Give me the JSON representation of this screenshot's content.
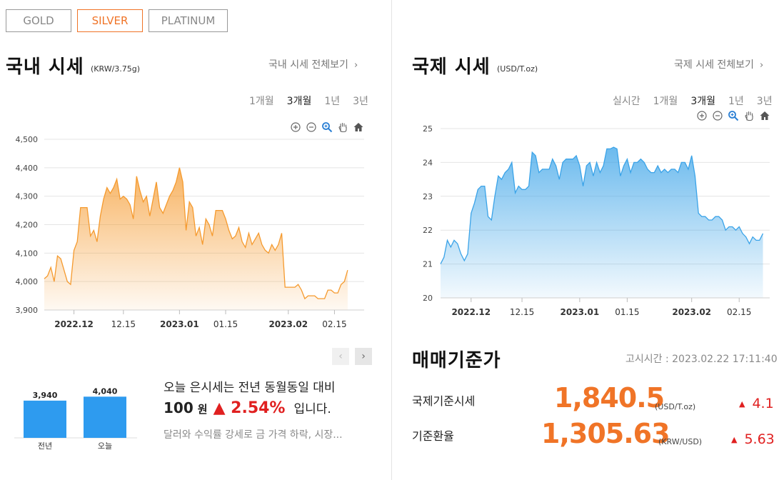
{
  "metal_tabs": [
    {
      "label": "GOLD",
      "active": false
    },
    {
      "label": "SILVER",
      "active": true
    },
    {
      "label": "PLATINUM",
      "active": false
    }
  ],
  "domestic": {
    "title": "국내 시세",
    "unit": "(KRW/3.75g)",
    "more_link": "국내 시세 전체보기",
    "periods": [
      "1개월",
      "3개월",
      "1년",
      "3년"
    ],
    "active_period": "3개월"
  },
  "international": {
    "title": "국제 시세",
    "unit": "(USD/T.oz)",
    "more_link": "국제 시세 전체보기",
    "periods": [
      "실시간",
      "1개월",
      "3개월",
      "1년",
      "3년"
    ],
    "active_period": "3개월"
  },
  "icons": {
    "zoom_in": "zoom-in-icon",
    "zoom_out": "zoom-out-icon",
    "magnify": "magnify-icon",
    "pan": "hand-icon",
    "reset": "home-icon",
    "prev": "chevron-left-icon",
    "next": "chevron-right-icon",
    "more": "chevron-right-icon"
  },
  "summary": {
    "line1": "오늘 은시세는 전년 동월동일 대비",
    "amount": "100",
    "amount_unit": "원",
    "arrow": "▲",
    "percent": "2.54%",
    "tail": "입니다.",
    "news": "달러와 수익률 강세로 금 가격 하락, 시장..."
  },
  "reference": {
    "title": "매매기준가",
    "notice_time": "고시시간 : 2023.02.22 17:11:40",
    "items": [
      {
        "label": "국제기준시세",
        "value": "1,840.5",
        "unit": "(USD/T.oz)",
        "arrow": "▲",
        "change": "4.1"
      },
      {
        "label": "기준환율",
        "value": "1,305.63",
        "unit": "(KRW/USD)",
        "arrow": "▲",
        "change": "5.63"
      }
    ]
  },
  "colors": {
    "accent": "#f07427",
    "domestic_line": "#f59a2e",
    "international_line": "#3aa3e8",
    "bar": "#2e9bef",
    "up": "#e02020"
  },
  "chart_data": [
    {
      "id": "domestic",
      "type": "area",
      "ylim": [
        3900,
        4500
      ],
      "yticks": [
        3900,
        4000,
        4100,
        4200,
        4300,
        4400,
        4500
      ],
      "ytick_labels": [
        "3,900",
        "4,000",
        "4,100",
        "4,200",
        "4,300",
        "4,400",
        "4,500"
      ],
      "x_range": [
        0,
        97
      ],
      "xticks": [
        {
          "x": 9,
          "label": "2022.12",
          "bold": true
        },
        {
          "x": 24,
          "label": "12.15",
          "bold": false
        },
        {
          "x": 41,
          "label": "2023.01",
          "bold": true
        },
        {
          "x": 55,
          "label": "01.15",
          "bold": false
        },
        {
          "x": 74,
          "label": "2023.02",
          "bold": true
        },
        {
          "x": 88,
          "label": "02.15",
          "bold": false
        }
      ],
      "series": [
        {
          "values": [
            [
              0,
              4010
            ],
            [
              1,
              4020
            ],
            [
              2,
              4050
            ],
            [
              3,
              4000
            ],
            [
              4,
              4090
            ],
            [
              5,
              4080
            ],
            [
              6,
              4040
            ],
            [
              7,
              4000
            ],
            [
              8,
              3990
            ],
            [
              9,
              4110
            ],
            [
              10,
              4140
            ],
            [
              11,
              4260
            ],
            [
              12,
              4260
            ],
            [
              13,
              4260
            ],
            [
              14,
              4160
            ],
            [
              15,
              4180
            ],
            [
              16,
              4140
            ],
            [
              17,
              4230
            ],
            [
              18,
              4290
            ],
            [
              19,
              4330
            ],
            [
              20,
              4310
            ],
            [
              21,
              4330
            ],
            [
              22,
              4360
            ],
            [
              23,
              4290
            ],
            [
              24,
              4300
            ],
            [
              25,
              4290
            ],
            [
              26,
              4270
            ],
            [
              27,
              4220
            ],
            [
              28,
              4370
            ],
            [
              29,
              4320
            ],
            [
              30,
              4280
            ],
            [
              31,
              4300
            ],
            [
              32,
              4230
            ],
            [
              33,
              4290
            ],
            [
              34,
              4350
            ],
            [
              35,
              4260
            ],
            [
              36,
              4240
            ],
            [
              37,
              4270
            ],
            [
              38,
              4300
            ],
            [
              39,
              4320
            ],
            [
              40,
              4350
            ],
            [
              41,
              4400
            ],
            [
              42,
              4350
            ],
            [
              43,
              4180
            ],
            [
              44,
              4280
            ],
            [
              45,
              4260
            ],
            [
              46,
              4160
            ],
            [
              47,
              4190
            ],
            [
              48,
              4130
            ],
            [
              49,
              4220
            ],
            [
              50,
              4200
            ],
            [
              51,
              4160
            ],
            [
              52,
              4250
            ],
            [
              53,
              4250
            ],
            [
              54,
              4250
            ],
            [
              55,
              4220
            ],
            [
              56,
              4180
            ],
            [
              57,
              4150
            ],
            [
              58,
              4160
            ],
            [
              59,
              4190
            ],
            [
              60,
              4140
            ],
            [
              61,
              4120
            ],
            [
              62,
              4170
            ],
            [
              63,
              4130
            ],
            [
              64,
              4150
            ],
            [
              65,
              4170
            ],
            [
              66,
              4130
            ],
            [
              67,
              4110
            ],
            [
              68,
              4100
            ],
            [
              69,
              4130
            ],
            [
              70,
              4110
            ],
            [
              71,
              4130
            ],
            [
              72,
              4170
            ],
            [
              73,
              3980
            ],
            [
              74,
              3980
            ],
            [
              75,
              3980
            ],
            [
              76,
              3980
            ],
            [
              77,
              3990
            ],
            [
              78,
              3970
            ],
            [
              79,
              3940
            ],
            [
              80,
              3950
            ],
            [
              81,
              3950
            ],
            [
              82,
              3950
            ],
            [
              83,
              3940
            ],
            [
              84,
              3940
            ],
            [
              85,
              3940
            ],
            [
              86,
              3970
            ],
            [
              87,
              3970
            ],
            [
              88,
              3960
            ],
            [
              89,
              3960
            ],
            [
              90,
              3990
            ],
            [
              91,
              4000
            ],
            [
              92,
              4040
            ]
          ]
        }
      ]
    },
    {
      "id": "international",
      "type": "area",
      "ylim": [
        20,
        25
      ],
      "yticks": [
        20,
        21,
        22,
        23,
        24,
        25
      ],
      "ytick_labels": [
        "20",
        "21",
        "22",
        "23",
        "24",
        "25"
      ],
      "x_range": [
        0,
        97
      ],
      "xticks": [
        {
          "x": 9,
          "label": "2022.12",
          "bold": true
        },
        {
          "x": 24,
          "label": "12.15",
          "bold": false
        },
        {
          "x": 41,
          "label": "2023.01",
          "bold": true
        },
        {
          "x": 55,
          "label": "01.15",
          "bold": false
        },
        {
          "x": 74,
          "label": "2023.02",
          "bold": true
        },
        {
          "x": 88,
          "label": "02.15",
          "bold": false
        }
      ],
      "series": [
        {
          "values": [
            [
              0,
              21.0
            ],
            [
              1,
              21.2
            ],
            [
              2,
              21.7
            ],
            [
              3,
              21.5
            ],
            [
              4,
              21.7
            ],
            [
              5,
              21.6
            ],
            [
              6,
              21.3
            ],
            [
              7,
              21.1
            ],
            [
              8,
              21.3
            ],
            [
              9,
              22.5
            ],
            [
              10,
              22.8
            ],
            [
              11,
              23.2
            ],
            [
              12,
              23.3
            ],
            [
              13,
              23.3
            ],
            [
              14,
              22.4
            ],
            [
              15,
              22.3
            ],
            [
              16,
              23.0
            ],
            [
              17,
              23.6
            ],
            [
              18,
              23.5
            ],
            [
              19,
              23.7
            ],
            [
              20,
              23.8
            ],
            [
              21,
              24.0
            ],
            [
              22,
              23.1
            ],
            [
              23,
              23.3
            ],
            [
              24,
              23.2
            ],
            [
              25,
              23.2
            ],
            [
              26,
              23.3
            ],
            [
              27,
              24.3
            ],
            [
              28,
              24.2
            ],
            [
              29,
              23.7
            ],
            [
              30,
              23.8
            ],
            [
              31,
              23.8
            ],
            [
              32,
              23.8
            ],
            [
              33,
              24.1
            ],
            [
              34,
              23.9
            ],
            [
              35,
              23.5
            ],
            [
              36,
              24.0
            ],
            [
              37,
              24.1
            ],
            [
              38,
              24.1
            ],
            [
              39,
              24.1
            ],
            [
              40,
              24.2
            ],
            [
              41,
              23.9
            ],
            [
              42,
              23.3
            ],
            [
              43,
              23.9
            ],
            [
              44,
              24.0
            ],
            [
              45,
              23.6
            ],
            [
              46,
              24.0
            ],
            [
              47,
              23.7
            ],
            [
              48,
              23.9
            ],
            [
              49,
              24.4
            ],
            [
              50,
              24.4
            ],
            [
              51,
              24.45
            ],
            [
              52,
              24.4
            ],
            [
              53,
              23.6
            ],
            [
              54,
              23.9
            ],
            [
              55,
              24.1
            ],
            [
              56,
              23.7
            ],
            [
              57,
              24.0
            ],
            [
              58,
              24.0
            ],
            [
              59,
              24.1
            ],
            [
              60,
              24.0
            ],
            [
              61,
              23.8
            ],
            [
              62,
              23.7
            ],
            [
              63,
              23.7
            ],
            [
              64,
              23.9
            ],
            [
              65,
              23.7
            ],
            [
              66,
              23.8
            ],
            [
              67,
              23.7
            ],
            [
              68,
              23.8
            ],
            [
              69,
              23.8
            ],
            [
              70,
              23.7
            ],
            [
              71,
              24.0
            ],
            [
              72,
              24.0
            ],
            [
              73,
              23.8
            ],
            [
              74,
              24.2
            ],
            [
              75,
              23.6
            ],
            [
              76,
              22.5
            ],
            [
              77,
              22.4
            ],
            [
              78,
              22.4
            ],
            [
              79,
              22.3
            ],
            [
              80,
              22.3
            ],
            [
              81,
              22.4
            ],
            [
              82,
              22.4
            ],
            [
              83,
              22.3
            ],
            [
              84,
              22.0
            ],
            [
              85,
              22.1
            ],
            [
              86,
              22.1
            ],
            [
              87,
              22.0
            ],
            [
              88,
              22.1
            ],
            [
              89,
              21.9
            ],
            [
              90,
              21.8
            ],
            [
              91,
              21.6
            ],
            [
              92,
              21.8
            ],
            [
              93,
              21.7
            ],
            [
              94,
              21.7
            ],
            [
              95,
              21.9
            ]
          ]
        }
      ]
    },
    {
      "id": "comparison",
      "type": "bar",
      "categories": [
        "전년",
        "오늘"
      ],
      "values": [
        3940,
        4040
      ],
      "value_labels": [
        "3,940",
        "4,040"
      ]
    }
  ]
}
